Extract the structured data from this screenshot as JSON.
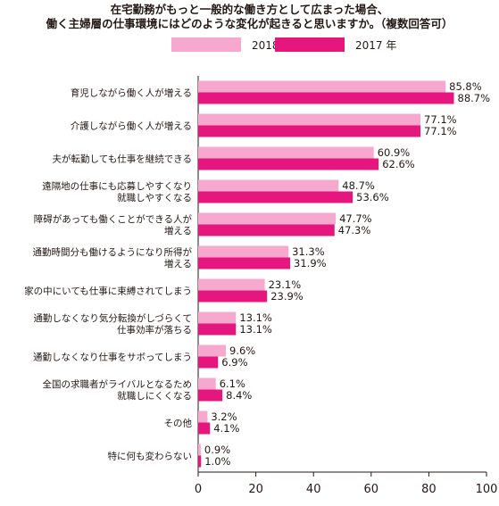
{
  "title_lines": [
    "在宅勤務がもっと一般的な働き方として広まった場合、",
    "働く主婦層の仕事環境にはどのような変化が起きると思いますか。（複数回答可）"
  ],
  "chart_data": {
    "type": "bar",
    "orientation": "horizontal",
    "categories": [
      [
        "育児しながら働く人が増える"
      ],
      [
        "介護しながら働く人が増える"
      ],
      [
        "夫が転勤しても仕事を継続できる"
      ],
      [
        "遠隔地の仕事にも応募しやすくなり",
        "就職しやすくなる"
      ],
      [
        "障碍があっても働くことができる人が",
        "増える"
      ],
      [
        "通勤時間分も働けるようになり所得が",
        "増える"
      ],
      [
        "家の中にいても仕事に束縛されてしまう"
      ],
      [
        "通勤しなくなり気分転換がしづらくて",
        "仕事効率が落ちる"
      ],
      [
        "通勤しなくなり仕事をサボってしまう"
      ],
      [
        "全国の求職者がライバルとなるため",
        "就職しにくくなる"
      ],
      [
        "その他"
      ],
      [
        "特に何も変わらない"
      ]
    ],
    "series": [
      {
        "name": "2018 年",
        "color": "#f7a8cf",
        "values": [
          85.8,
          77.1,
          60.9,
          48.7,
          47.7,
          31.3,
          23.1,
          13.1,
          9.6,
          6.1,
          3.2,
          0.9
        ],
        "labels": [
          "85.8%",
          "77.1%",
          "60.9%",
          "48.7%",
          "47.7%",
          "31.3%",
          "23.1%",
          "13.1%",
          "9.6%",
          "6.1%",
          "3.2%",
          "0.9%"
        ]
      },
      {
        "name": "2017 年",
        "color": "#e5167e",
        "values": [
          88.7,
          77.1,
          62.6,
          53.6,
          47.3,
          31.9,
          23.9,
          13.1,
          6.9,
          8.4,
          4.1,
          1.0
        ],
        "labels": [
          "88.7%",
          "77.1%",
          "62.6%",
          "53.6%",
          "47.3%",
          "31.9%",
          "23.9%",
          "13.1%",
          "6.9%",
          "8.4%",
          "4.1%",
          "1.0%"
        ]
      }
    ],
    "xlim": [
      0,
      100
    ],
    "xticks": [
      0,
      20,
      40,
      60,
      80,
      100
    ],
    "xtick_labels": [
      "0",
      "20",
      "40",
      "60",
      "80",
      "100"
    ],
    "legend_position": "top",
    "grid": false
  }
}
